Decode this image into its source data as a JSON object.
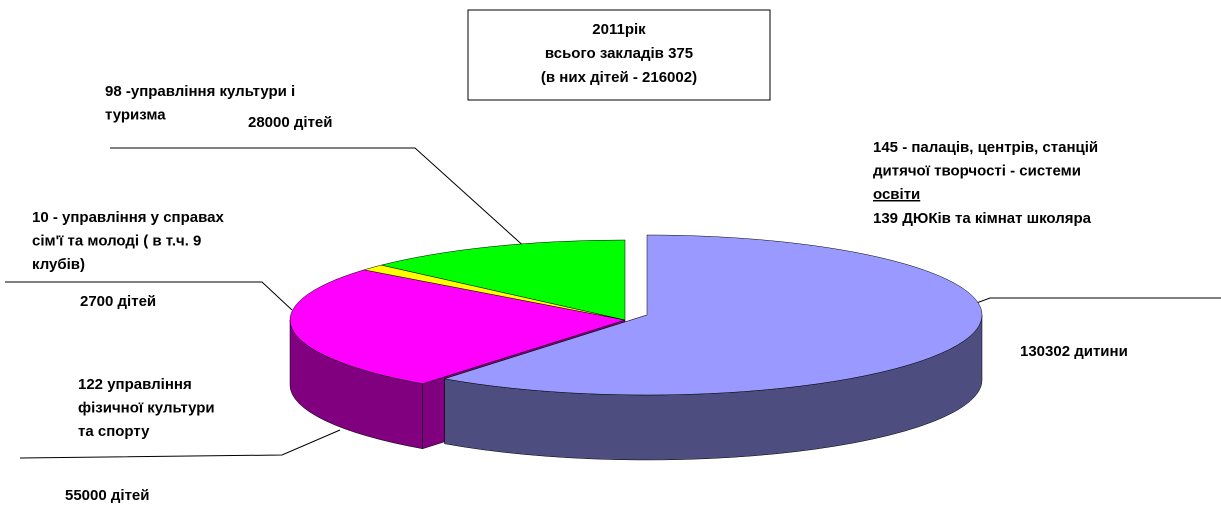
{
  "chart_data": {
    "type": "pie",
    "title": [
      "2011рік",
      "всього закладів 375",
      "(в них дітей - 216002)"
    ],
    "categories": [
      [
        "145 - палаців, центрів, станцій",
        "дитячої творчості - системи",
        "освіти"
      ],
      [
        "122 управління",
        "фізичної культури",
        "та спорту"
      ],
      [
        "10 - управління у справах",
        "сім'ї та молоді ( в т.ч. 9",
        " клубів)"
      ],
      [
        "98 -управління культури і",
        "туризма"
      ]
    ],
    "annotations": [
      "139 ДЮКів та кімнат школяра"
    ],
    "values": [
      130302,
      55000,
      2700,
      28000
    ],
    "value_labels": [
      "130302 дитини",
      "55000 дітей",
      "2700 дітей",
      "28000 дітей"
    ],
    "colors": [
      "#9999ff",
      "#ff00ff",
      "#ffff00",
      "#00ff00"
    ],
    "side_colors": [
      "#4d4d80",
      "#800080",
      "#808000",
      "#008000"
    ]
  }
}
